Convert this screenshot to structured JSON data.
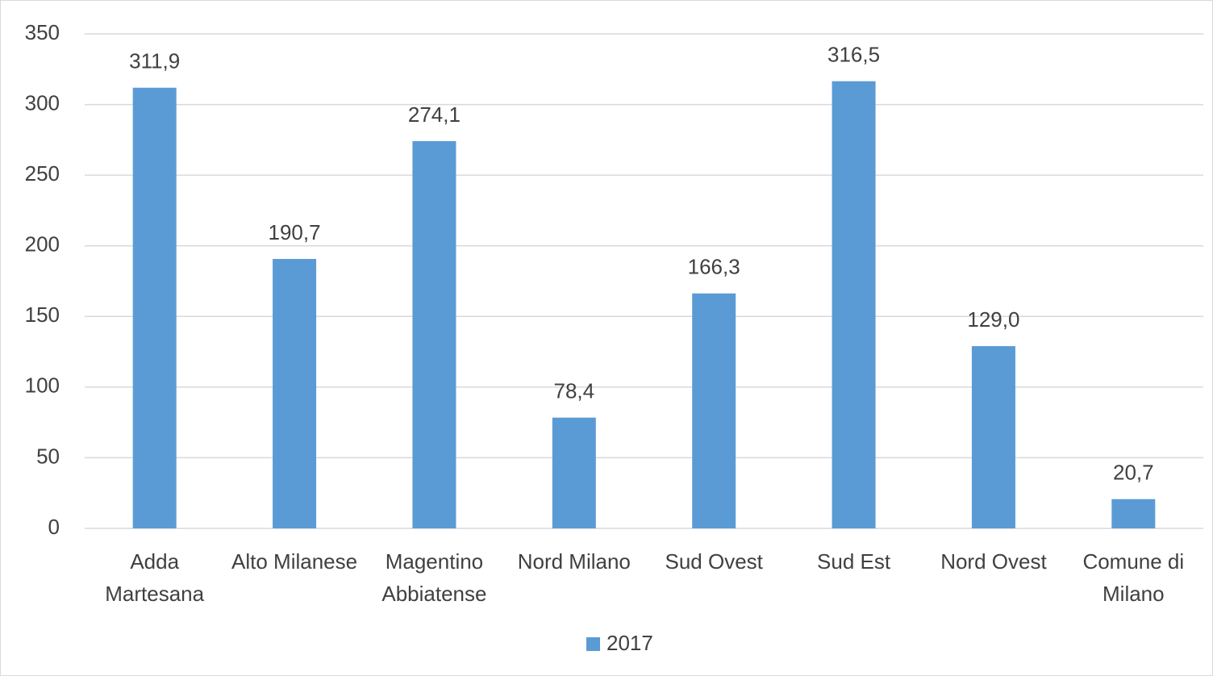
{
  "chart_data": {
    "type": "bar",
    "categories": [
      "Adda Martesana",
      "Alto Milanese",
      "Magentino Abbiatense",
      "Nord Milano",
      "Sud Ovest",
      "Sud Est",
      "Nord Ovest",
      "Comune di Milano"
    ],
    "series": [
      {
        "name": "2017",
        "color": "#5b9bd5",
        "values": [
          311.9,
          190.7,
          274.1,
          78.4,
          166.3,
          316.5,
          129.0,
          20.7
        ],
        "value_labels": [
          "311,9",
          "190,7",
          "274,1",
          "78,4",
          "166,3",
          "316,5",
          "129,0",
          "20,7"
        ]
      }
    ],
    "ylim": [
      0,
      350
    ],
    "yticks": [
      0,
      50,
      100,
      150,
      200,
      250,
      300,
      350
    ],
    "grid": true,
    "legend": "bottom"
  }
}
